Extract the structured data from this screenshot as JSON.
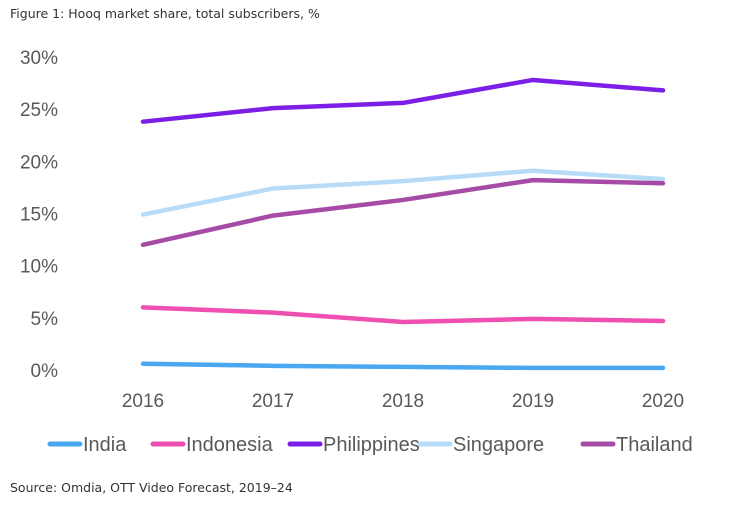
{
  "chart_data": {
    "type": "line",
    "title": "Figure 1: Hooq market share, total subscribers, %",
    "source": "Source: Omdia, OTT Video Forecast, 2019–24",
    "categories": [
      "2016",
      "2017",
      "2018",
      "2019",
      "2020"
    ],
    "ylim": [
      0,
      30
    ],
    "yticks": [
      "0%",
      "5%",
      "10%",
      "15%",
      "20%",
      "25%",
      "30%"
    ],
    "ytick_values": [
      0,
      5,
      10,
      15,
      20,
      25,
      30
    ],
    "grid": false,
    "legend_position": "bottom",
    "series": [
      {
        "name": "India",
        "color": "#4aa8f0",
        "values": [
          0.6,
          0.4,
          0.3,
          0.2,
          0.2
        ]
      },
      {
        "name": "Indonesia",
        "color": "#ee4fb0",
        "values": [
          6.0,
          5.5,
          4.6,
          4.9,
          4.7
        ]
      },
      {
        "name": "Philippines",
        "color": "#7b1fe6",
        "values": [
          23.8,
          25.1,
          25.6,
          27.8,
          26.8
        ]
      },
      {
        "name": "Singapore",
        "color": "#b8dcf8",
        "values": [
          14.9,
          17.4,
          18.1,
          19.1,
          18.3
        ]
      },
      {
        "name": "Thailand",
        "color": "#a64ca6",
        "values": [
          12.0,
          14.8,
          16.3,
          18.2,
          17.9
        ]
      }
    ]
  }
}
